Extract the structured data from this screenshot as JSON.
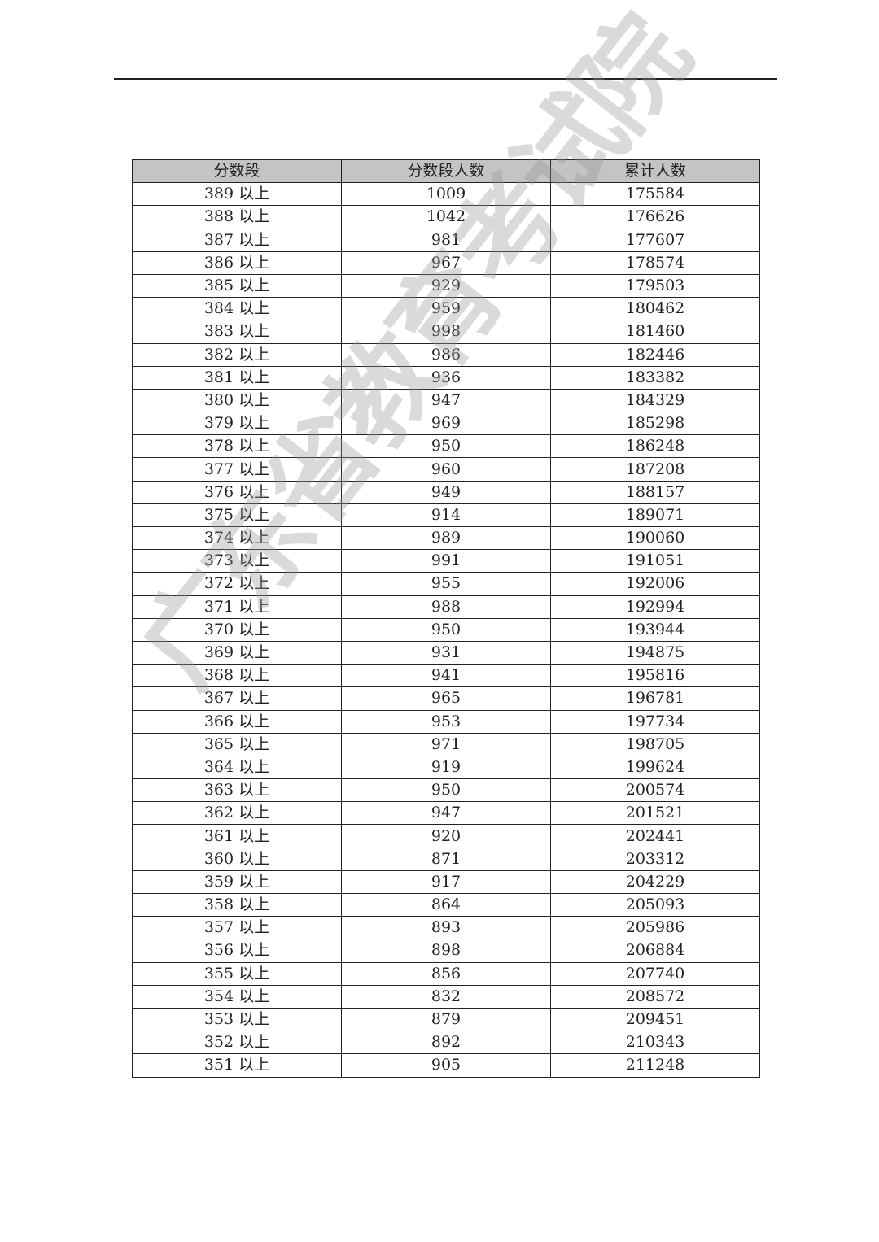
{
  "watermark": "广东省教育考试院",
  "table": {
    "headers": [
      "分数段",
      "分数段人数",
      "累计人数"
    ],
    "rows": [
      [
        "389 以上",
        "1009",
        "175584"
      ],
      [
        "388 以上",
        "1042",
        "176626"
      ],
      [
        "387 以上",
        "981",
        "177607"
      ],
      [
        "386 以上",
        "967",
        "178574"
      ],
      [
        "385 以上",
        "929",
        "179503"
      ],
      [
        "384 以上",
        "959",
        "180462"
      ],
      [
        "383 以上",
        "998",
        "181460"
      ],
      [
        "382 以上",
        "986",
        "182446"
      ],
      [
        "381 以上",
        "936",
        "183382"
      ],
      [
        "380 以上",
        "947",
        "184329"
      ],
      [
        "379 以上",
        "969",
        "185298"
      ],
      [
        "378 以上",
        "950",
        "186248"
      ],
      [
        "377 以上",
        "960",
        "187208"
      ],
      [
        "376 以上",
        "949",
        "188157"
      ],
      [
        "375 以上",
        "914",
        "189071"
      ],
      [
        "374 以上",
        "989",
        "190060"
      ],
      [
        "373 以上",
        "991",
        "191051"
      ],
      [
        "372 以上",
        "955",
        "192006"
      ],
      [
        "371 以上",
        "988",
        "192994"
      ],
      [
        "370 以上",
        "950",
        "193944"
      ],
      [
        "369 以上",
        "931",
        "194875"
      ],
      [
        "368 以上",
        "941",
        "195816"
      ],
      [
        "367 以上",
        "965",
        "196781"
      ],
      [
        "366 以上",
        "953",
        "197734"
      ],
      [
        "365 以上",
        "971",
        "198705"
      ],
      [
        "364 以上",
        "919",
        "199624"
      ],
      [
        "363 以上",
        "950",
        "200574"
      ],
      [
        "362 以上",
        "947",
        "201521"
      ],
      [
        "361 以上",
        "920",
        "202441"
      ],
      [
        "360 以上",
        "871",
        "203312"
      ],
      [
        "359 以上",
        "917",
        "204229"
      ],
      [
        "358 以上",
        "864",
        "205093"
      ],
      [
        "357 以上",
        "893",
        "205986"
      ],
      [
        "356 以上",
        "898",
        "206884"
      ],
      [
        "355 以上",
        "856",
        "207740"
      ],
      [
        "354 以上",
        "832",
        "208572"
      ],
      [
        "353 以上",
        "879",
        "209451"
      ],
      [
        "352 以上",
        "892",
        "210343"
      ],
      [
        "351 以上",
        "905",
        "211248"
      ]
    ]
  }
}
